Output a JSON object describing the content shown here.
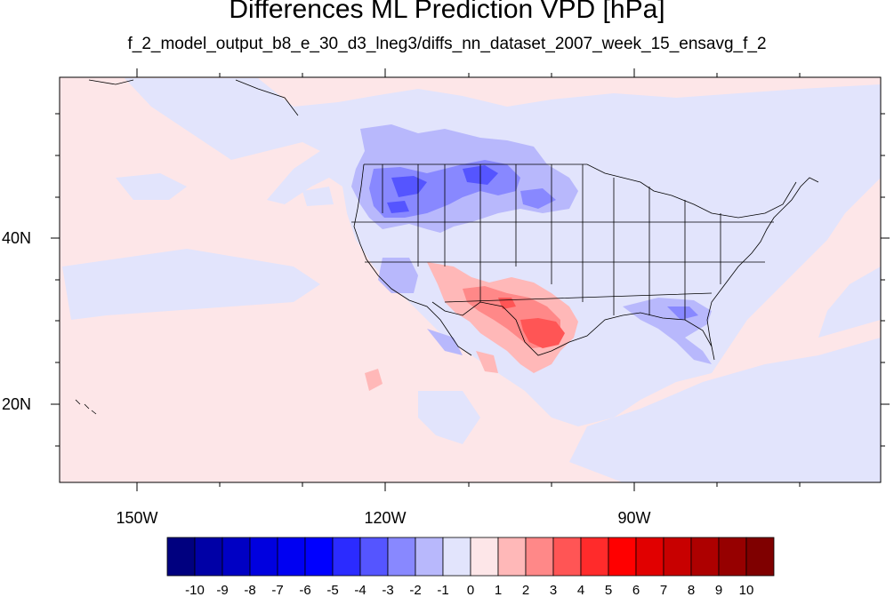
{
  "title": "Differences ML Prediction VPD [hPa]",
  "subtitle": "f_2_model_output_b8_e_30_d3_lneg3/diffs_nn_dataset_2007_week_15_ensavg_f_2",
  "map": {
    "x_tick_labels": [
      "150W",
      "120W",
      "90W"
    ],
    "y_tick_labels": [
      "40N",
      "20N"
    ],
    "background_color": "#fde6e8",
    "negative_light_color": "#e2e4fc"
  },
  "colorbar": {
    "labels": [
      "-10",
      "-9",
      "-8",
      "-7",
      "-6",
      "-5",
      "-4",
      "-3",
      "-2",
      "-1",
      "0",
      "1",
      "2",
      "3",
      "4",
      "5",
      "6",
      "7",
      "8",
      "9",
      "10"
    ],
    "colors": [
      "#00007f",
      "#0000a6",
      "#0000c4",
      "#0000df",
      "#0000f2",
      "#0000ff",
      "#2b2bff",
      "#5555ff",
      "#8888ff",
      "#b8b8fc",
      "#e2e4fc",
      "#fde6e8",
      "#ffb8b8",
      "#ff8888",
      "#ff5555",
      "#ff2b2b",
      "#ff0000",
      "#e10000",
      "#c80000",
      "#ad0000",
      "#960000",
      "#7f0000"
    ]
  }
}
